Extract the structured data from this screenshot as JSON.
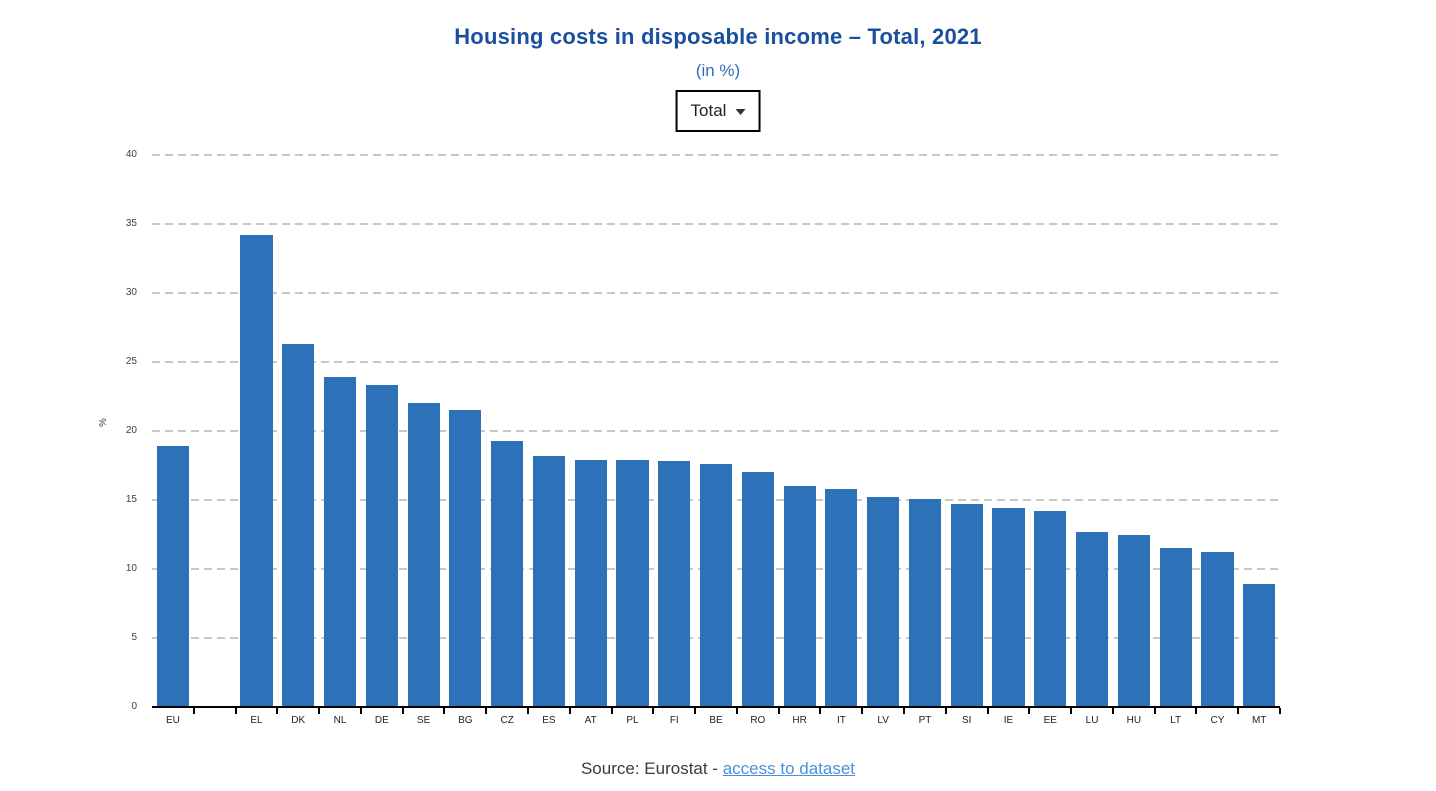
{
  "header": {
    "title": "Housing costs in disposable income – Total, 2021",
    "subtitle": "(in %)",
    "dropdown": {
      "selected": "Total"
    }
  },
  "chart_data": {
    "type": "bar",
    "title": "Housing costs in disposable income – Total, 2021",
    "subtitle": "(in %)",
    "xlabel": "",
    "ylabel": "%",
    "ylim": [
      0,
      40
    ],
    "yticks": [
      0,
      5,
      10,
      15,
      20,
      25,
      30,
      35,
      40
    ],
    "grid": "horizontal-dashed",
    "legend": "none",
    "bar_color": "#2d72b8",
    "categories": [
      "EU",
      "",
      "EL",
      "DK",
      "NL",
      "DE",
      "SE",
      "BG",
      "CZ",
      "ES",
      "AT",
      "PL",
      "FI",
      "BE",
      "RO",
      "HR",
      "IT",
      "LV",
      "PT",
      "SI",
      "IE",
      "EE",
      "LU",
      "HU",
      "LT",
      "CY",
      "MT"
    ],
    "values": [
      18.9,
      null,
      34.2,
      26.3,
      23.9,
      23.3,
      22.0,
      21.5,
      19.3,
      18.2,
      17.9,
      17.9,
      17.8,
      17.6,
      17.0,
      16.0,
      15.8,
      15.2,
      15.1,
      14.7,
      14.4,
      14.2,
      12.7,
      12.5,
      11.5,
      11.2,
      8.9
    ]
  },
  "footer": {
    "source_text": "Source: Eurostat -",
    "link_text": "access to dataset"
  },
  "colors": {
    "bar": "#2d72b8",
    "title": "#1a4f9e",
    "subtitle": "#2d6fc0",
    "link": "#4a90da",
    "grid": "#c8c8c8",
    "axis": "#000000",
    "tick_label": "#404040"
  }
}
